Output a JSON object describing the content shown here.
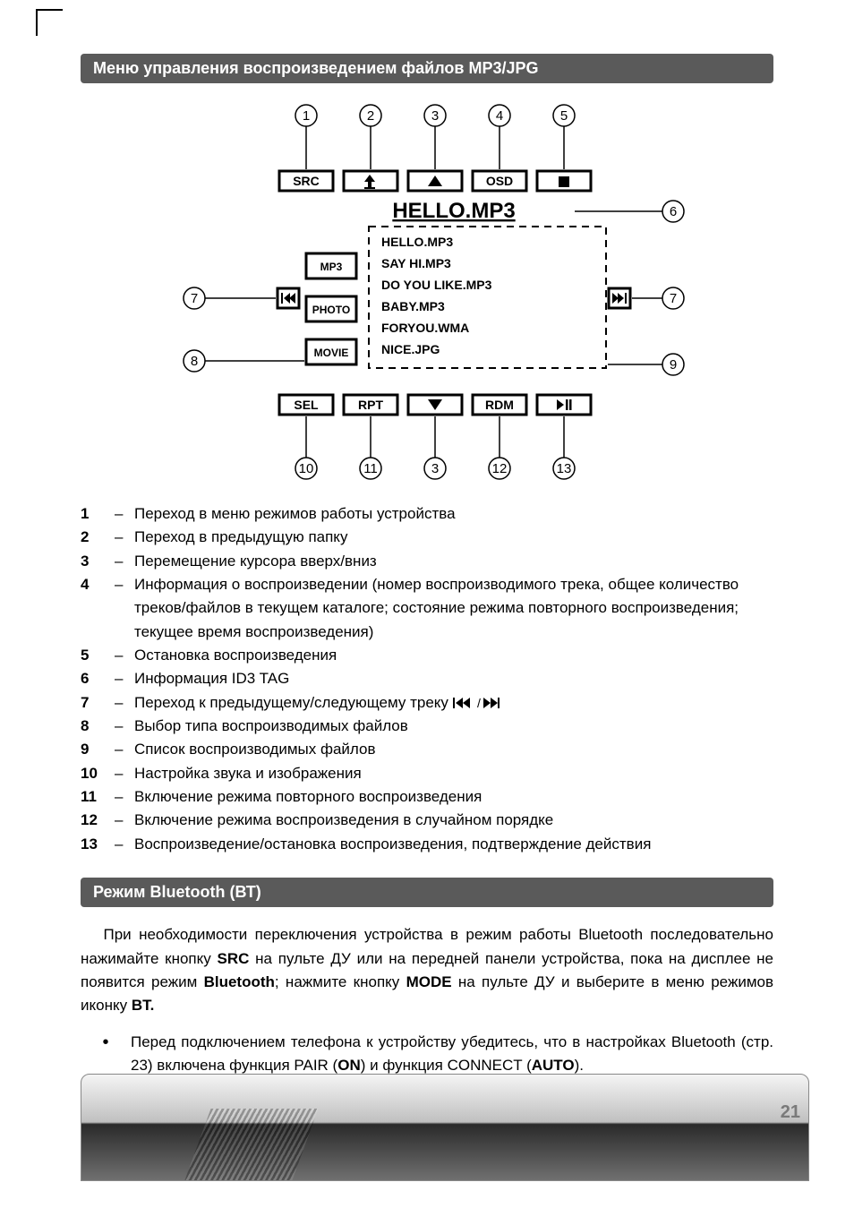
{
  "page_number": "21",
  "section1": {
    "title": "Меню управления воспроизведением файлов MP3/JPG"
  },
  "diagram": {
    "top_callouts": [
      "1",
      "2",
      "3",
      "4",
      "5"
    ],
    "bottom_callouts": [
      "10",
      "11",
      "3",
      "12",
      "13"
    ],
    "left_callouts": [
      "7",
      "8"
    ],
    "right_callouts": [
      "6",
      "7",
      "9"
    ],
    "top_buttons": [
      "SRC",
      "",
      "",
      "OSD",
      ""
    ],
    "top_button_icons": [
      "",
      "up-folder",
      "arrow-up",
      "",
      "stop"
    ],
    "bottom_buttons": [
      "SEL",
      "RPT",
      "",
      "RDM",
      ""
    ],
    "bottom_button_icons": [
      "",
      "",
      "arrow-down",
      "",
      "play-pause"
    ],
    "nowplaying": "HELLO.MP3",
    "left_tabs": [
      "MP3",
      "PHOTO",
      "MOVIE"
    ],
    "file_list": [
      "HELLO.MP3",
      "SAY HI.MP3",
      "DO YOU LIKE.MP3",
      "BABY.MP3",
      "FORYOU.WMA",
      "NICE.JPG"
    ],
    "nav_left_icon": "prev-track",
    "nav_right_icon": "next-track",
    "colors": {
      "stroke": "#000000",
      "fill": "#ffffff",
      "callout_text": "#000000"
    }
  },
  "legend": [
    {
      "n": "1",
      "t": "Переход в меню режимов работы устройства"
    },
    {
      "n": "2",
      "t": "Переход в предыдущую папку"
    },
    {
      "n": "3",
      "t": "Перемещение курсора вверх/вниз"
    },
    {
      "n": "4",
      "t": "Информация о воспроизведении (номер воспроизводимого трека, общее количество треков/файлов в текущем каталоге; состояние режима повторного воспроизведения; текущее время воспроизведения)"
    },
    {
      "n": "5",
      "t": "Остановка воспроизведения"
    },
    {
      "n": "6",
      "t": "Информация ID3 TAG"
    },
    {
      "n": "7",
      "t": "Переход к предыдущему/следующему треку",
      "icon": "prev-next"
    },
    {
      "n": "8",
      "t": "Выбор типа воспроизводимых файлов"
    },
    {
      "n": "9",
      "t": "Список воспроизводимых файлов"
    },
    {
      "n": "10",
      "t": "Настройка звука и изображения"
    },
    {
      "n": "11",
      "t": "Включение режима повторного воспроизведения"
    },
    {
      "n": "12",
      "t": "Включение режима воспроизведения в случайном порядке"
    },
    {
      "n": "13",
      "t": "Воспроизведение/остановка воспроизведения, подтверждение действия"
    }
  ],
  "section2": {
    "title": "Режим Bluetooth (ВТ)",
    "p1_a": "При необходимости переключения устройства в режим работы Bluetooth последовательно нажимайте кнопку ",
    "p1_src": "SRC",
    "p1_b": " на пульте ДУ или на передней панели устройства, пока на дисплее не появится режим ",
    "p1_bt": "Bluetooth",
    "p1_c": "; нажмите кнопку ",
    "p1_mode": "MODE",
    "p1_d": " на пульте ДУ и выберите в меню режимов иконку ",
    "p1_btlabel": "BT.",
    "bullet_a": "Перед подключением телефона к устройству убедитесь, что в настройках Bluetooth (стр. 23) включена функция PAIR (",
    "bullet_on": "ON",
    "bullet_b": ") и функция CONNECT (",
    "bullet_auto": "AUTO",
    "bullet_c": ")."
  }
}
